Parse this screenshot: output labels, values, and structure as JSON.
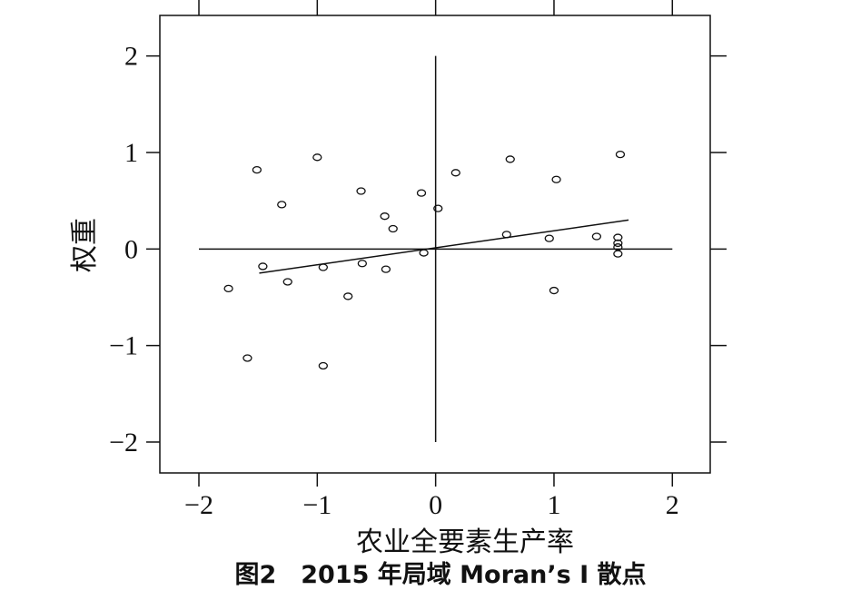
{
  "chart_data": {
    "type": "scatter",
    "x_label": "农业全要素生产率",
    "y_label": "权重",
    "caption": "图2　2015 年局域 Moran’s I 散点",
    "x": [
      -1.51,
      -1.0,
      -1.3,
      -0.63,
      -0.43,
      -0.36,
      -0.12,
      0.02,
      0.17,
      0.63,
      1.56,
      1.02,
      0.6,
      0.96,
      1.36,
      1.54,
      1.54,
      1.54,
      1.54,
      -0.1,
      -1.46,
      -0.95,
      -0.62,
      -0.42,
      -1.25,
      -1.75,
      -0.74,
      1.0,
      -1.59,
      -0.95
    ],
    "y": [
      0.82,
      0.95,
      0.46,
      0.6,
      0.34,
      0.21,
      0.58,
      0.42,
      0.79,
      0.93,
      0.98,
      0.72,
      0.15,
      0.11,
      0.13,
      0.12,
      0.06,
      0.02,
      -0.05,
      -0.04,
      -0.18,
      -0.19,
      -0.15,
      -0.21,
      -0.34,
      -0.41,
      -0.49,
      -0.43,
      -1.13,
      -1.21
    ],
    "fit_line": {
      "x": [
        -1.49,
        1.63
      ],
      "y": [
        -0.25,
        0.3
      ]
    },
    "xlim": [
      -2.33,
      2.32
    ],
    "ylim": [
      -2.32,
      2.42
    ],
    "xticks": [
      {
        "value": -2,
        "label": "−2"
      },
      {
        "value": -1,
        "label": "−1"
      },
      0,
      1,
      2
    ],
    "yticks": [
      {
        "value": -2,
        "label": "−2"
      },
      {
        "value": -1,
        "label": "−1"
      },
      0,
      1,
      2
    ],
    "color": "#111111"
  }
}
